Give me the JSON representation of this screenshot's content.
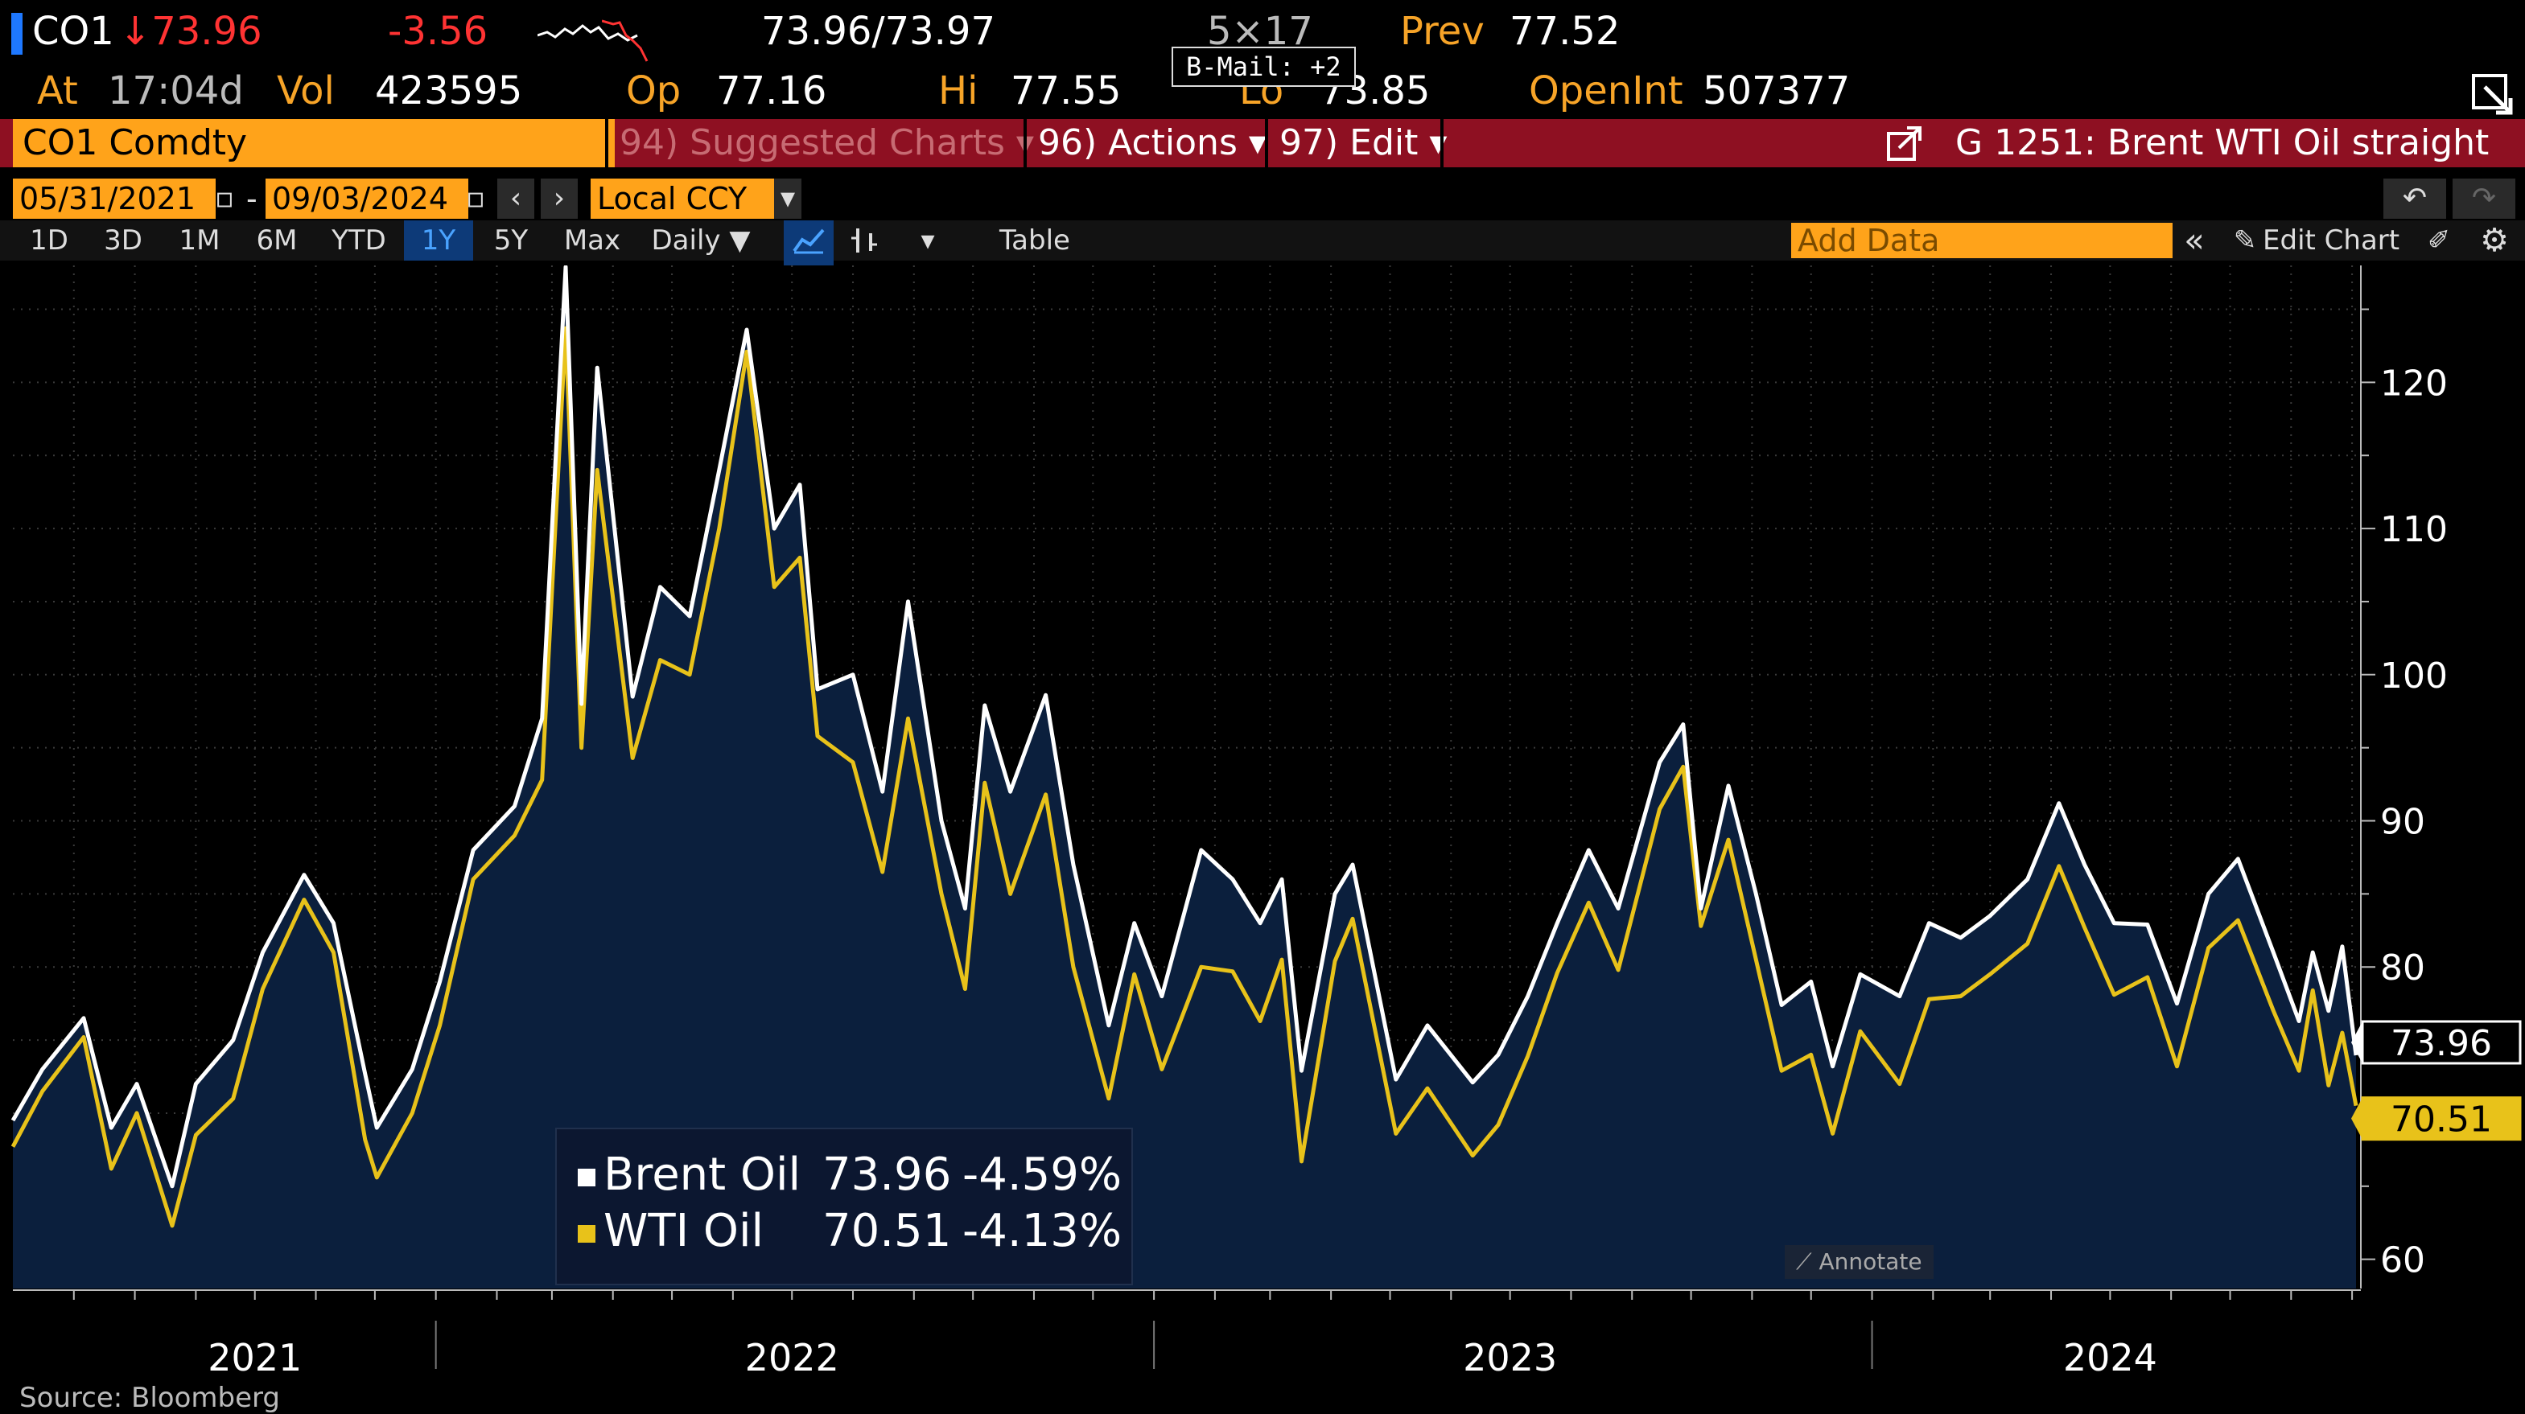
{
  "quote": {
    "ticker": "CO1",
    "last": "↓73.96",
    "change": "-3.56",
    "bid_ask": "73.96/73.97",
    "size": "5×17",
    "prev_label": "Prev",
    "prev": "77.52",
    "at_label": "At",
    "time": "17:04d",
    "vol_label": "Vol",
    "vol": "423595",
    "op_label": "Op",
    "op": "77.16",
    "hi_label": "Hi",
    "hi": "77.55",
    "lo_label": "Lo",
    "lo": "73.85",
    "oi_label": "OpenInt",
    "oi": "507377",
    "bmail": "B-Mail: +2"
  },
  "function_bar": {
    "security": "CO1 Comdty",
    "suggested": "94) Suggested Charts ▾",
    "actions": "96) Actions ▾",
    "edit": "97) Edit ▾",
    "title": "G 1251: Brent WTI Oil straight"
  },
  "dates": {
    "start": "05/31/2021",
    "dash": "-",
    "end": "09/03/2024",
    "currency": "Local CCY"
  },
  "toolbar": {
    "ranges": [
      "1D",
      "3D",
      "1M",
      "6M",
      "YTD",
      "1Y",
      "5Y",
      "Max"
    ],
    "active_range": "1Y",
    "frequency": "Daily ▼",
    "table": "Table",
    "add_data_placeholder": "Add Data",
    "edit_chart": "Edit Chart"
  },
  "legend": {
    "brent": {
      "name": "Brent Oil",
      "value": "73.96",
      "change": "-4.59%"
    },
    "wti": {
      "name": "WTI Oil",
      "value": "70.51",
      "change": "-4.13%"
    }
  },
  "annotate": "Annotate",
  "source": "Source: Bloomberg",
  "colors": {
    "accent_orange": "#ffa31a",
    "function_bar": "#8e1022",
    "brent": "#ffffff",
    "wti": "#e8c21a",
    "area": "#0b1f3d"
  },
  "chart_data": {
    "type": "line",
    "ylim": [
      58,
      128
    ],
    "yticks": [
      60,
      80,
      90,
      100,
      110,
      120
    ],
    "xlim": [
      "2021-05-31",
      "2024-09-03"
    ],
    "year_labels": [
      {
        "label": "2021",
        "x": "2021-10-01"
      },
      {
        "label": "2022",
        "x": "2022-07-01"
      },
      {
        "label": "2023",
        "x": "2023-07-01"
      },
      {
        "label": "2024",
        "x": "2024-05-01"
      }
    ],
    "year_dividers": [
      "2022-01-01",
      "2023-01-01",
      "2024-01-01"
    ],
    "last_values": {
      "brent": "73.96",
      "wti": "70.51"
    },
    "grid": true,
    "series": [
      {
        "name": "Brent Oil",
        "key": "brent",
        "points": [
          [
            "2021-05-31",
            69.5
          ],
          [
            "2021-06-15",
            73
          ],
          [
            "2021-07-06",
            76.5
          ],
          [
            "2021-07-20",
            69
          ],
          [
            "2021-08-02",
            72
          ],
          [
            "2021-08-20",
            65
          ],
          [
            "2021-09-01",
            72
          ],
          [
            "2021-09-20",
            75
          ],
          [
            "2021-10-05",
            81
          ],
          [
            "2021-10-26",
            86.3
          ],
          [
            "2021-11-10",
            83
          ],
          [
            "2021-11-26",
            72.7
          ],
          [
            "2021-12-02",
            69
          ],
          [
            "2021-12-20",
            73
          ],
          [
            "2022-01-03",
            79
          ],
          [
            "2022-01-20",
            88
          ],
          [
            "2022-02-10",
            91
          ],
          [
            "2022-02-24",
            97
          ],
          [
            "2022-03-08",
            127.9
          ],
          [
            "2022-03-16",
            98
          ],
          [
            "2022-03-24",
            121
          ],
          [
            "2022-04-11",
            98.5
          ],
          [
            "2022-04-25",
            106
          ],
          [
            "2022-05-10",
            104
          ],
          [
            "2022-05-25",
            114
          ],
          [
            "2022-06-08",
            123.6
          ],
          [
            "2022-06-22",
            110
          ],
          [
            "2022-07-05",
            113
          ],
          [
            "2022-07-14",
            99
          ],
          [
            "2022-08-01",
            100
          ],
          [
            "2022-08-16",
            92
          ],
          [
            "2022-08-29",
            105
          ],
          [
            "2022-09-15",
            90
          ],
          [
            "2022-09-27",
            84
          ],
          [
            "2022-10-07",
            97.9
          ],
          [
            "2022-10-20",
            92
          ],
          [
            "2022-11-07",
            98.6
          ],
          [
            "2022-11-21",
            87
          ],
          [
            "2022-12-09",
            76
          ],
          [
            "2022-12-22",
            83
          ],
          [
            "2023-01-05",
            78
          ],
          [
            "2023-01-25",
            88
          ],
          [
            "2023-02-10",
            86
          ],
          [
            "2023-02-24",
            83
          ],
          [
            "2023-03-07",
            86
          ],
          [
            "2023-03-17",
            72.9
          ],
          [
            "2023-04-03",
            85
          ],
          [
            "2023-04-12",
            87
          ],
          [
            "2023-05-04",
            72.3
          ],
          [
            "2023-05-20",
            76
          ],
          [
            "2023-06-12",
            72.1
          ],
          [
            "2023-06-25",
            74
          ],
          [
            "2023-07-10",
            78
          ],
          [
            "2023-07-25",
            83
          ],
          [
            "2023-08-10",
            88
          ],
          [
            "2023-08-25",
            84
          ],
          [
            "2023-09-15",
            94
          ],
          [
            "2023-09-27",
            96.6
          ],
          [
            "2023-10-06",
            84
          ],
          [
            "2023-10-20",
            92.4
          ],
          [
            "2023-11-03",
            85
          ],
          [
            "2023-11-16",
            77.4
          ],
          [
            "2023-12-01",
            79
          ],
          [
            "2023-12-12",
            73.2
          ],
          [
            "2023-12-26",
            79.5
          ],
          [
            "2024-01-15",
            78
          ],
          [
            "2024-01-30",
            83
          ],
          [
            "2024-02-15",
            82
          ],
          [
            "2024-03-01",
            83.5
          ],
          [
            "2024-03-20",
            86
          ],
          [
            "2024-04-05",
            91.2
          ],
          [
            "2024-04-18",
            87
          ],
          [
            "2024-05-03",
            83
          ],
          [
            "2024-05-20",
            82.9
          ],
          [
            "2024-06-04",
            77.5
          ],
          [
            "2024-06-20",
            85
          ],
          [
            "2024-07-05",
            87.4
          ],
          [
            "2024-07-23",
            81
          ],
          [
            "2024-08-05",
            76.3
          ],
          [
            "2024-08-12",
            81
          ],
          [
            "2024-08-20",
            77
          ],
          [
            "2024-08-27",
            81.4
          ],
          [
            "2024-09-03",
            73.96
          ]
        ]
      },
      {
        "name": "WTI Oil",
        "key": "wti",
        "points": [
          [
            "2021-05-31",
            67.7
          ],
          [
            "2021-06-15",
            71.5
          ],
          [
            "2021-07-06",
            75.2
          ],
          [
            "2021-07-20",
            66.2
          ],
          [
            "2021-08-02",
            70
          ],
          [
            "2021-08-20",
            62.3
          ],
          [
            "2021-09-01",
            68.5
          ],
          [
            "2021-09-20",
            71
          ],
          [
            "2021-10-05",
            78.5
          ],
          [
            "2021-10-26",
            84.6
          ],
          [
            "2021-11-10",
            81
          ],
          [
            "2021-11-26",
            68.2
          ],
          [
            "2021-12-02",
            65.6
          ],
          [
            "2021-12-20",
            70
          ],
          [
            "2022-01-03",
            76
          ],
          [
            "2022-01-20",
            86
          ],
          [
            "2022-02-10",
            89
          ],
          [
            "2022-02-24",
            92.8
          ],
          [
            "2022-03-08",
            123.7
          ],
          [
            "2022-03-16",
            95
          ],
          [
            "2022-03-24",
            114
          ],
          [
            "2022-04-11",
            94.3
          ],
          [
            "2022-04-25",
            101
          ],
          [
            "2022-05-10",
            100
          ],
          [
            "2022-05-25",
            110
          ],
          [
            "2022-06-08",
            122.1
          ],
          [
            "2022-06-22",
            106
          ],
          [
            "2022-07-05",
            108
          ],
          [
            "2022-07-14",
            95.8
          ],
          [
            "2022-08-01",
            94
          ],
          [
            "2022-08-16",
            86.5
          ],
          [
            "2022-08-29",
            97
          ],
          [
            "2022-09-15",
            85
          ],
          [
            "2022-09-27",
            78.5
          ],
          [
            "2022-10-07",
            92.6
          ],
          [
            "2022-10-20",
            85
          ],
          [
            "2022-11-07",
            91.8
          ],
          [
            "2022-11-21",
            80
          ],
          [
            "2022-12-09",
            71
          ],
          [
            "2022-12-22",
            79.5
          ],
          [
            "2023-01-05",
            73
          ],
          [
            "2023-01-25",
            80
          ],
          [
            "2023-02-10",
            79.7
          ],
          [
            "2023-02-24",
            76.3
          ],
          [
            "2023-03-07",
            80.5
          ],
          [
            "2023-03-17",
            66.7
          ],
          [
            "2023-04-03",
            80.4
          ],
          [
            "2023-04-12",
            83.3
          ],
          [
            "2023-05-04",
            68.6
          ],
          [
            "2023-05-20",
            71.7
          ],
          [
            "2023-06-12",
            67.1
          ],
          [
            "2023-06-25",
            69.2
          ],
          [
            "2023-07-10",
            73.9
          ],
          [
            "2023-07-25",
            79.6
          ],
          [
            "2023-08-10",
            84.4
          ],
          [
            "2023-08-25",
            79.8
          ],
          [
            "2023-09-15",
            90.8
          ],
          [
            "2023-09-27",
            93.7
          ],
          [
            "2023-10-06",
            82.8
          ],
          [
            "2023-10-20",
            88.7
          ],
          [
            "2023-11-03",
            80.5
          ],
          [
            "2023-11-16",
            72.9
          ],
          [
            "2023-12-01",
            74
          ],
          [
            "2023-12-12",
            68.6
          ],
          [
            "2023-12-26",
            75.6
          ],
          [
            "2024-01-15",
            72
          ],
          [
            "2024-01-30",
            77.8
          ],
          [
            "2024-02-15",
            78
          ],
          [
            "2024-03-01",
            79.5
          ],
          [
            "2024-03-20",
            81.6
          ],
          [
            "2024-04-05",
            86.9
          ],
          [
            "2024-04-18",
            82.7
          ],
          [
            "2024-05-03",
            78.1
          ],
          [
            "2024-05-20",
            79.3
          ],
          [
            "2024-06-04",
            73.2
          ],
          [
            "2024-06-20",
            81.3
          ],
          [
            "2024-07-05",
            83.2
          ],
          [
            "2024-07-23",
            77
          ],
          [
            "2024-08-05",
            72.9
          ],
          [
            "2024-08-12",
            78.4
          ],
          [
            "2024-08-20",
            71.9
          ],
          [
            "2024-08-27",
            75.5
          ],
          [
            "2024-09-03",
            70.51
          ]
        ]
      }
    ]
  }
}
